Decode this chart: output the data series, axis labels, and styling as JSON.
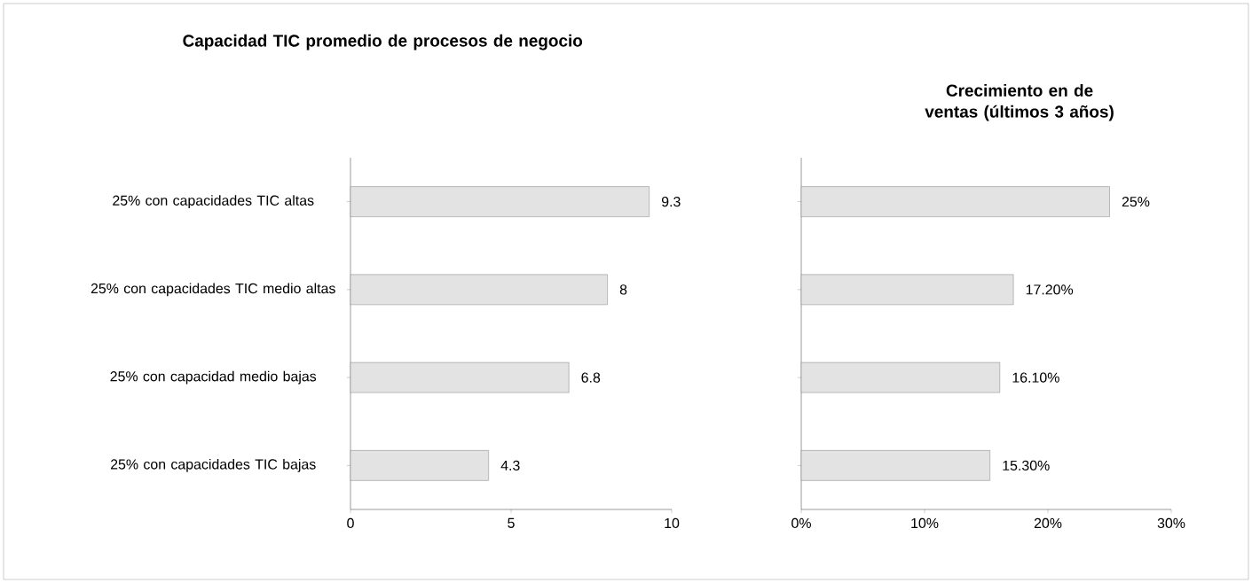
{
  "chart_data": [
    {
      "type": "bar",
      "orientation": "horizontal",
      "title": "Capacidad TIC promedio de procesos de negocio",
      "categories": [
        "25% con capacidades TIC altas",
        "25% con capacidades TIC medio altas",
        "25% con capacidad medio bajas",
        "25% con capacidades TIC bajas"
      ],
      "values": [
        9.3,
        8,
        6.8,
        4.3
      ],
      "color": "#e3e3e3",
      "xlim": [
        0,
        10
      ],
      "xticks": [
        0,
        5,
        10
      ],
      "data_labels": true
    },
    {
      "type": "bar",
      "orientation": "horizontal",
      "title": "Crecimiento en de ventas (últimos 3 años)",
      "categories": [
        null,
        null,
        null,
        null
      ],
      "values": [
        25,
        17.2,
        16.1,
        15.3
      ],
      "value_labels": [
        "25%",
        "17.20%",
        "16.10%",
        "15.30%"
      ],
      "color": "#e3e3e3",
      "xlim": [
        0,
        30
      ],
      "xticks": [
        {
          "value": 0,
          "label": "0%"
        },
        {
          "value": 10,
          "label": "10%"
        },
        {
          "value": 20,
          "label": "20%"
        },
        {
          "value": 30,
          "label": "30%"
        }
      ]
    }
  ]
}
